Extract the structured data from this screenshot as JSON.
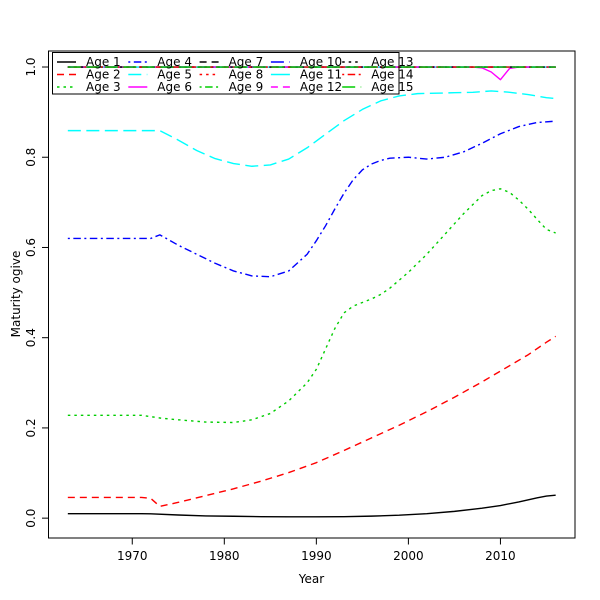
{
  "chart_data": {
    "type": "line",
    "title": "",
    "xlabel": "Year",
    "ylabel": "Maturity ogive",
    "x_ticks": [
      1970,
      1980,
      1990,
      2000,
      2010
    ],
    "y_ticks": [
      0.0,
      0.2,
      0.4,
      0.6,
      0.8,
      1.0
    ],
    "x_axis_range": [
      1960.9,
      2018.1
    ],
    "y_axis_range": [
      -0.044,
      1.0355
    ],
    "data_year_range": [
      1963,
      2016
    ],
    "grid": false,
    "legend": {
      "position": "top-left",
      "columns": 5,
      "rows": 3,
      "fill": "transparent"
    },
    "colors": {
      "black": "#000000",
      "red": "#FF0000",
      "green": "#00CD00",
      "blue": "#0000FF",
      "cyan": "#00FFFF",
      "magenta": "#FF00FF"
    },
    "series": [
      {
        "name": "Age 1",
        "color": "#000000",
        "dash": "solid",
        "points": [
          [
            1963,
            0.01
          ],
          [
            1971,
            0.01
          ],
          [
            1972,
            0.0095
          ],
          [
            1975,
            0.007
          ],
          [
            1978,
            0.005
          ],
          [
            1981,
            0.0042
          ],
          [
            1984,
            0.0033
          ],
          [
            1987,
            0.003
          ],
          [
            1990,
            0.003
          ],
          [
            1993,
            0.0033
          ],
          [
            1996,
            0.0045
          ],
          [
            1999,
            0.0065
          ],
          [
            2002,
            0.01
          ],
          [
            2005,
            0.015
          ],
          [
            2008,
            0.022
          ],
          [
            2010,
            0.028
          ],
          [
            2012,
            0.036
          ],
          [
            2014,
            0.045
          ],
          [
            2015,
            0.049
          ],
          [
            2016,
            0.051
          ]
        ]
      },
      {
        "name": "Age 2",
        "color": "#FF0000",
        "dash": "dashed",
        "points": [
          [
            1963,
            0.046
          ],
          [
            1971,
            0.046
          ],
          [
            1972,
            0.044
          ],
          [
            1973,
            0.026
          ],
          [
            1975,
            0.035
          ],
          [
            1978,
            0.05
          ],
          [
            1981,
            0.065
          ],
          [
            1984,
            0.082
          ],
          [
            1987,
            0.101
          ],
          [
            1990,
            0.123
          ],
          [
            1993,
            0.15
          ],
          [
            1996,
            0.178
          ],
          [
            1999,
            0.206
          ],
          [
            2002,
            0.236
          ],
          [
            2005,
            0.268
          ],
          [
            2008,
            0.302
          ],
          [
            2011,
            0.338
          ],
          [
            2013,
            0.362
          ],
          [
            2015,
            0.39
          ],
          [
            2016,
            0.403
          ]
        ]
      },
      {
        "name": "Age 3",
        "color": "#00CD00",
        "dash": "dotted",
        "points": [
          [
            1963,
            0.228
          ],
          [
            1971,
            0.228
          ],
          [
            1973,
            0.222
          ],
          [
            1975,
            0.218
          ],
          [
            1978,
            0.213
          ],
          [
            1981,
            0.212
          ],
          [
            1983,
            0.218
          ],
          [
            1985,
            0.232
          ],
          [
            1987,
            0.26
          ],
          [
            1989,
            0.3
          ],
          [
            1990,
            0.33
          ],
          [
            1991,
            0.375
          ],
          [
            1992,
            0.42
          ],
          [
            1993,
            0.455
          ],
          [
            1994,
            0.47
          ],
          [
            1995,
            0.478
          ],
          [
            1996,
            0.486
          ],
          [
            1997,
            0.496
          ],
          [
            1998,
            0.51
          ],
          [
            2000,
            0.545
          ],
          [
            2002,
            0.585
          ],
          [
            2004,
            0.63
          ],
          [
            2006,
            0.675
          ],
          [
            2008,
            0.715
          ],
          [
            2009,
            0.726
          ],
          [
            2010,
            0.73
          ],
          [
            2011,
            0.722
          ],
          [
            2012,
            0.705
          ],
          [
            2013,
            0.685
          ],
          [
            2014,
            0.662
          ],
          [
            2015,
            0.64
          ],
          [
            2016,
            0.632
          ]
        ]
      },
      {
        "name": "Age 4",
        "color": "#0000FF",
        "dash": "dotdash",
        "points": [
          [
            1963,
            0.62
          ],
          [
            1972,
            0.62
          ],
          [
            1973,
            0.628
          ],
          [
            1975,
            0.605
          ],
          [
            1977,
            0.585
          ],
          [
            1979,
            0.565
          ],
          [
            1981,
            0.548
          ],
          [
            1983,
            0.537
          ],
          [
            1985,
            0.535
          ],
          [
            1987,
            0.548
          ],
          [
            1989,
            0.585
          ],
          [
            1990,
            0.615
          ],
          [
            1991,
            0.648
          ],
          [
            1992,
            0.685
          ],
          [
            1993,
            0.72
          ],
          [
            1994,
            0.75
          ],
          [
            1995,
            0.772
          ],
          [
            1996,
            0.785
          ],
          [
            1997,
            0.793
          ],
          [
            1998,
            0.798
          ],
          [
            2000,
            0.8
          ],
          [
            2002,
            0.796
          ],
          [
            2004,
            0.8
          ],
          [
            2006,
            0.812
          ],
          [
            2008,
            0.831
          ],
          [
            2010,
            0.852
          ],
          [
            2012,
            0.868
          ],
          [
            2014,
            0.877
          ],
          [
            2016,
            0.88
          ]
        ]
      },
      {
        "name": "Age 5",
        "color": "#00FFFF",
        "dash": "longdash",
        "points": [
          [
            1963,
            0.859
          ],
          [
            1973,
            0.859
          ],
          [
            1975,
            0.838
          ],
          [
            1977,
            0.815
          ],
          [
            1979,
            0.797
          ],
          [
            1981,
            0.786
          ],
          [
            1983,
            0.78
          ],
          [
            1985,
            0.783
          ],
          [
            1987,
            0.796
          ],
          [
            1989,
            0.821
          ],
          [
            1991,
            0.851
          ],
          [
            1993,
            0.881
          ],
          [
            1995,
            0.906
          ],
          [
            1997,
            0.925
          ],
          [
            1999,
            0.936
          ],
          [
            2001,
            0.941
          ],
          [
            2003,
            0.942
          ],
          [
            2005,
            0.943
          ],
          [
            2007,
            0.944
          ],
          [
            2009,
            0.947
          ],
          [
            2011,
            0.944
          ],
          [
            2013,
            0.939
          ],
          [
            2015,
            0.932
          ],
          [
            2016,
            0.93
          ]
        ]
      },
      {
        "name": "Age 6",
        "color": "#FF00FF",
        "dash": "solid",
        "points": [
          [
            1963,
            1.0
          ],
          [
            2007,
            1.0
          ],
          [
            2008,
            0.998
          ],
          [
            2009,
            0.989
          ],
          [
            2010,
            0.972
          ],
          [
            2011,
            0.997
          ],
          [
            2012,
            1.0
          ],
          [
            2016,
            1.0
          ]
        ]
      },
      {
        "name": "Age 7",
        "color": "#000000",
        "dash": "dashed",
        "points": [
          [
            1963,
            1.0
          ],
          [
            2016,
            1.0
          ]
        ]
      },
      {
        "name": "Age 8",
        "color": "#FF0000",
        "dash": "dotted",
        "points": [
          [
            1963,
            1.0
          ],
          [
            2016,
            1.0
          ]
        ]
      },
      {
        "name": "Age 9",
        "color": "#00CD00",
        "dash": "dotdash",
        "points": [
          [
            1963,
            1.0
          ],
          [
            2016,
            1.0
          ]
        ]
      },
      {
        "name": "Age 10",
        "color": "#0000FF",
        "dash": "longdash",
        "points": [
          [
            1963,
            1.0
          ],
          [
            2016,
            1.0
          ]
        ]
      },
      {
        "name": "Age 11",
        "color": "#00FFFF",
        "dash": "solid",
        "points": [
          [
            1963,
            1.0
          ],
          [
            2016,
            1.0
          ]
        ]
      },
      {
        "name": "Age 12",
        "color": "#FF00FF",
        "dash": "dashed",
        "points": [
          [
            1963,
            1.0
          ],
          [
            2016,
            1.0
          ]
        ]
      },
      {
        "name": "Age 13",
        "color": "#000000",
        "dash": "dotted",
        "points": [
          [
            1963,
            1.0
          ],
          [
            2016,
            1.0
          ]
        ]
      },
      {
        "name": "Age 14",
        "color": "#FF0000",
        "dash": "dotdash",
        "points": [
          [
            1963,
            1.0
          ],
          [
            2016,
            1.0
          ]
        ]
      },
      {
        "name": "Age 15",
        "color": "#00CD00",
        "dash": "longdash",
        "points": [
          [
            1963,
            1.0
          ],
          [
            2016,
            1.0
          ]
        ]
      }
    ]
  }
}
